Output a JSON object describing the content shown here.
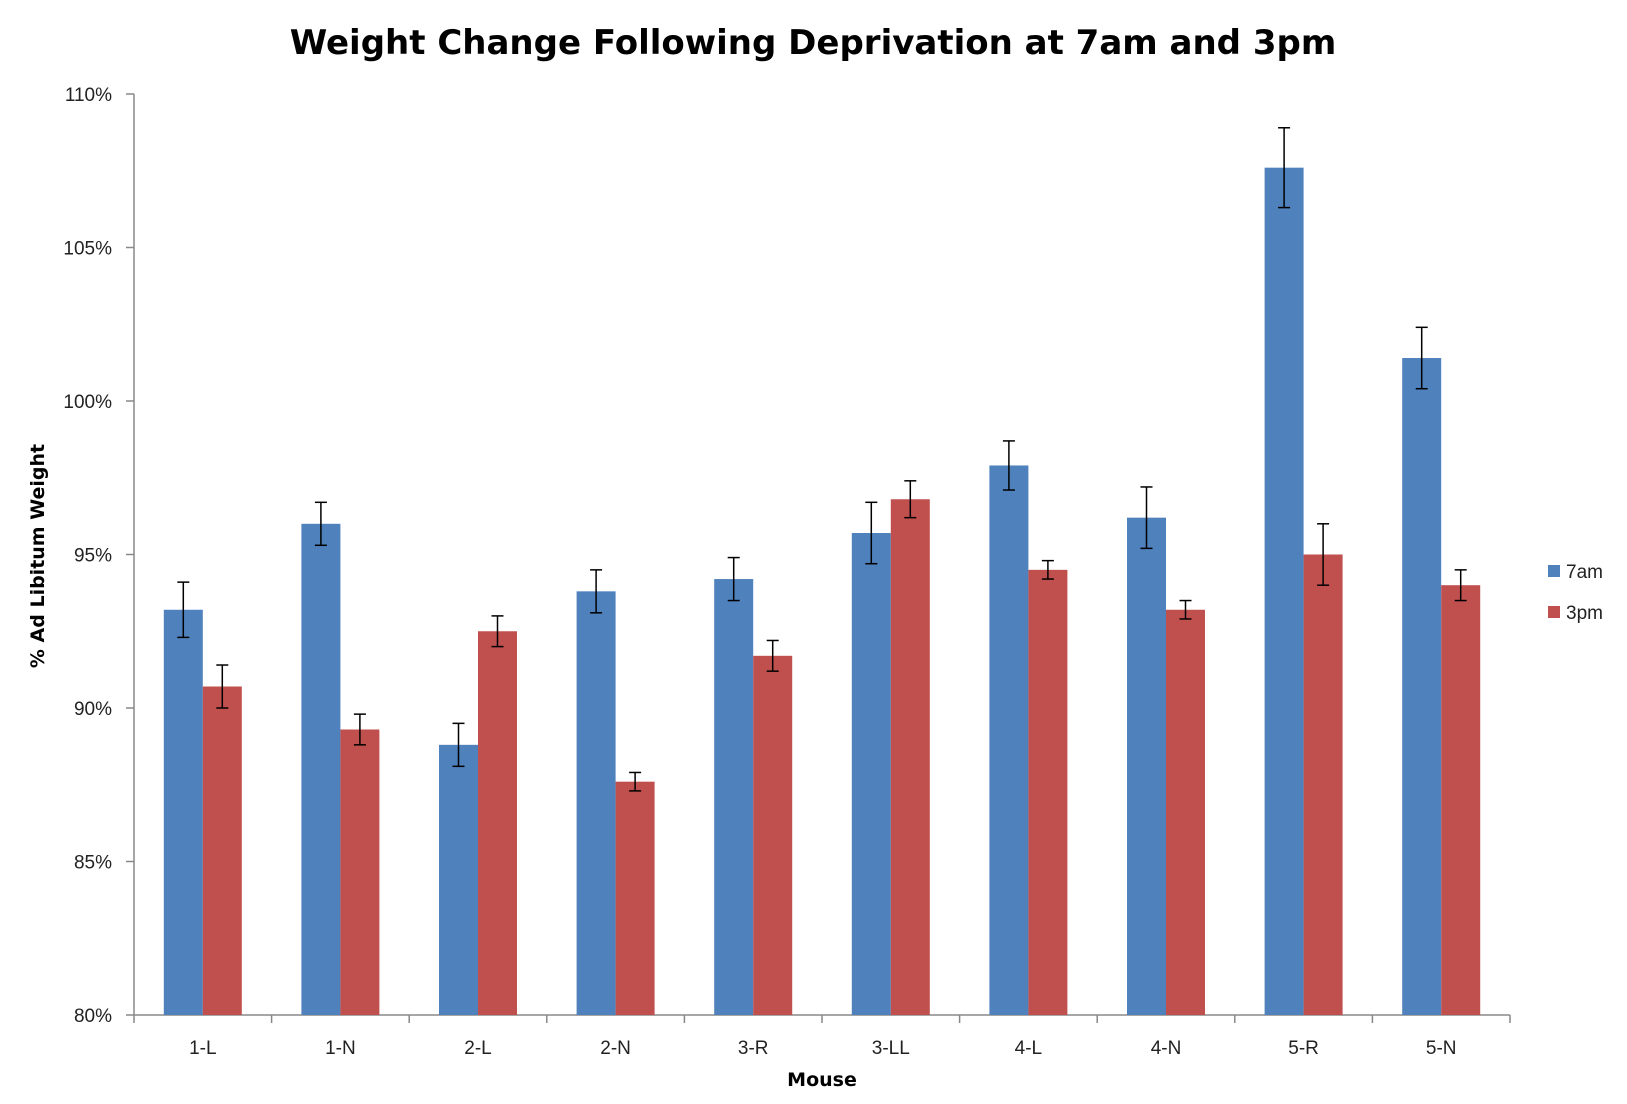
{
  "chart_data": {
    "type": "bar",
    "title": "Weight Change Following Deprivation at 7am and 3pm",
    "xlabel": "Mouse",
    "ylabel": "% Ad Libitum Weight",
    "ylim": [
      80,
      110
    ],
    "yticks": [
      80,
      85,
      90,
      95,
      100,
      105,
      110
    ],
    "ytick_suffix": "%",
    "categories": [
      "1-L",
      "1-N",
      "2-L",
      "2-N",
      "3-R",
      "3-LL",
      "4-L",
      "4-N",
      "5-R",
      "5-N"
    ],
    "series": [
      {
        "name": "7am",
        "color": "#4F81BD",
        "values": [
          93.2,
          96.0,
          88.8,
          93.8,
          94.2,
          95.7,
          97.9,
          96.2,
          107.6,
          101.4
        ],
        "errors": [
          0.9,
          0.7,
          0.7,
          0.7,
          0.7,
          1.0,
          0.8,
          1.0,
          1.3,
          1.0
        ]
      },
      {
        "name": "3pm",
        "color": "#C0504D",
        "values": [
          90.7,
          89.3,
          92.5,
          87.6,
          91.7,
          96.8,
          94.5,
          93.2,
          95.0,
          94.0
        ],
        "errors": [
          0.7,
          0.5,
          0.5,
          0.3,
          0.5,
          0.6,
          0.3,
          0.3,
          1.0,
          0.5
        ]
      }
    ],
    "legend_position": "right",
    "grid": false
  }
}
